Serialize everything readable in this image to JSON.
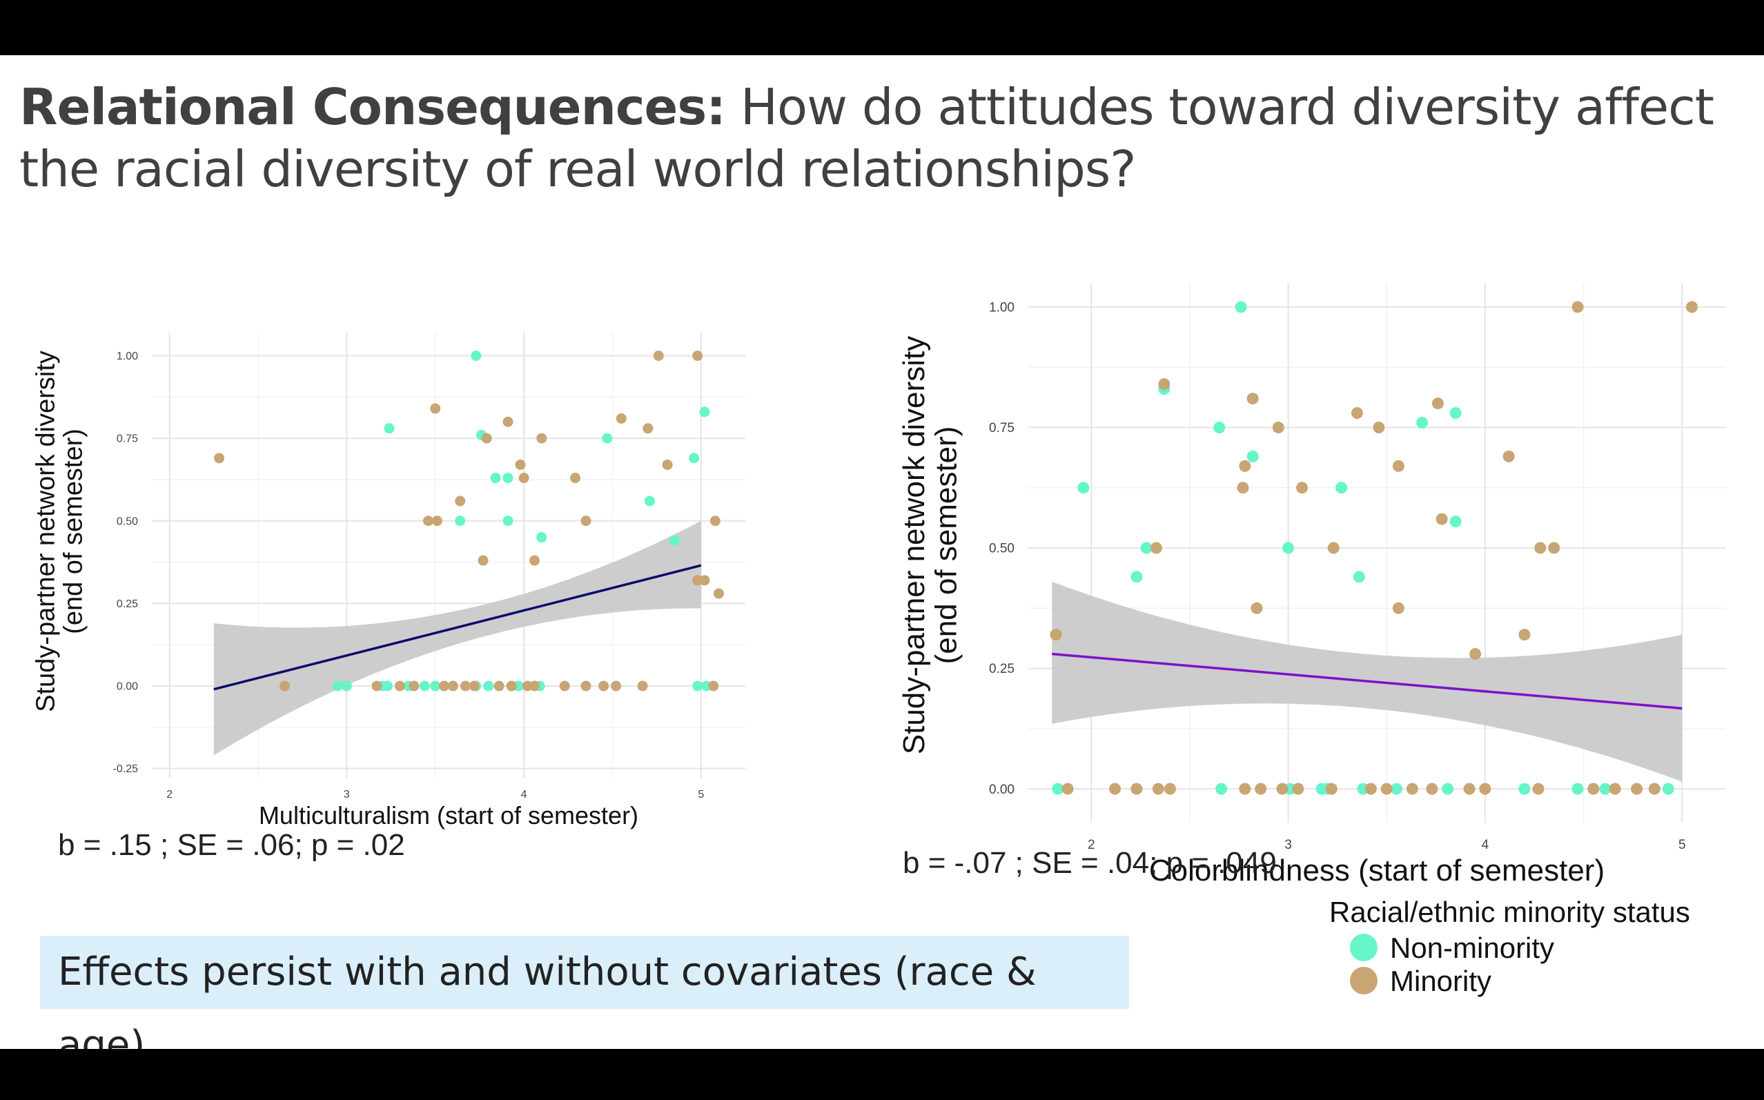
{
  "slide": {
    "title_bold": "Relational Consequences:",
    "title_rest": " How do attitudes toward diversity affect the racial diversity of real world relationships?",
    "stat_left": "b = .15 ; SE = .06; p = .02",
    "stat_right": "b = -.07 ; SE = .04; p = .049",
    "note": "Effects persist with and without covariates (race & age)"
  },
  "legend": {
    "title": "Racial/ethnic minority status",
    "items": [
      {
        "label": "Non-minority",
        "color": "#66f5c8"
      },
      {
        "label": "Minority",
        "color": "#c8a572"
      }
    ]
  },
  "colors": {
    "background": "#000000",
    "note_bg": "#dbeffb",
    "ribbon": "#c8c8c8"
  },
  "chart_data": [
    {
      "type": "scatter",
      "xlabel": "Multiculturalism (start of semester)",
      "ylabel": "Study-partner network diversity\n(end of semester)",
      "xlim": [
        1.9,
        5.25
      ],
      "ylim": [
        -0.28,
        1.07
      ],
      "xticks": [
        2,
        3,
        4,
        5
      ],
      "yticks": [
        -0.25,
        0,
        0.25,
        0.5,
        0.75,
        1.0
      ],
      "ytick_labels": [
        "-0.25",
        "0.00",
        "0.25",
        "0.50",
        "0.75",
        "1.00"
      ],
      "grid": true,
      "fit": {
        "x": [
          2.25,
          5.0
        ],
        "y": [
          -0.01,
          0.365
        ],
        "color": "#0a0a6e",
        "ci_lower": [
          -0.21,
          0.235
        ],
        "ci_upper": [
          0.19,
          0.5
        ]
      },
      "series": [
        {
          "name": "Non-minority",
          "color": "#66f5c8",
          "x": [
            3.73,
            3.24,
            3.76,
            5.02,
            4.96,
            4.47,
            3.84,
            3.91,
            3.64,
            3.91,
            4.71,
            4.1,
            4.85,
            2.95,
            3.0,
            3.2,
            3.23,
            3.35,
            3.44,
            3.5,
            3.73,
            3.8,
            3.97,
            4.09,
            4.98,
            5.03
          ],
          "y": [
            1.0,
            0.78,
            0.76,
            0.83,
            0.69,
            0.75,
            0.63,
            0.63,
            0.5,
            0.5,
            0.56,
            0.45,
            0.44,
            0,
            0,
            0,
            0,
            0,
            0,
            0,
            0,
            0,
            0,
            0,
            0,
            0
          ]
        },
        {
          "name": "Minority",
          "color": "#c8a572",
          "x": [
            2.28,
            4.76,
            4.98,
            3.5,
            3.91,
            3.79,
            4.1,
            3.98,
            4.55,
            4.7,
            4.81,
            3.64,
            3.46,
            3.51,
            4.0,
            4.29,
            4.35,
            3.77,
            4.06,
            5.08,
            4.98,
            5.02,
            5.1,
            2.65,
            3.17,
            3.3,
            3.38,
            3.55,
            3.6,
            3.67,
            3.72,
            3.86,
            3.93,
            4.02,
            4.06,
            4.23,
            4.35,
            4.45,
            4.52,
            4.67,
            5.07
          ],
          "y": [
            0.69,
            1.0,
            1.0,
            0.84,
            0.8,
            0.75,
            0.75,
            0.67,
            0.81,
            0.78,
            0.67,
            0.56,
            0.5,
            0.5,
            0.63,
            0.63,
            0.5,
            0.38,
            0.38,
            0.5,
            0.32,
            0.32,
            0.28,
            0,
            0,
            0,
            0,
            0,
            0,
            0,
            0,
            0,
            0,
            0,
            0,
            0,
            0,
            0,
            0,
            0,
            0
          ]
        }
      ]
    },
    {
      "type": "scatter",
      "xlabel": "Colorblindness (start of semester)",
      "ylabel": "Study-partner network diversity\n(end of semester)",
      "xlim": [
        1.68,
        5.22
      ],
      "ylim": [
        -0.07,
        1.05
      ],
      "xticks": [
        2,
        3,
        4,
        5
      ],
      "yticks": [
        0,
        0.25,
        0.5,
        0.75,
        1.0
      ],
      "ytick_labels": [
        "0.00",
        "0.25",
        "0.50",
        "0.75",
        "1.00"
      ],
      "grid": true,
      "fit": {
        "x": [
          1.8,
          5.0
        ],
        "y": [
          0.28,
          0.167
        ],
        "color": "#7d12c8",
        "ci_lower": [
          0.135,
          0.015
        ],
        "ci_upper": [
          0.43,
          0.32
        ]
      },
      "series": [
        {
          "name": "Non-minority",
          "color": "#66f5c8",
          "x": [
            2.76,
            2.37,
            2.65,
            2.82,
            1.96,
            2.28,
            3.27,
            3.0,
            2.23,
            3.36,
            3.68,
            3.85,
            3.85,
            1.83,
            2.66,
            3.01,
            3.17,
            3.2,
            3.38,
            3.55,
            3.81,
            4.2,
            4.47,
            4.61,
            4.86,
            4.93
          ],
          "y": [
            1.0,
            0.83,
            0.75,
            0.69,
            0.625,
            0.5,
            0.625,
            0.5,
            0.44,
            0.44,
            0.76,
            0.78,
            0.555,
            0,
            0,
            0,
            0,
            0,
            0,
            0,
            0,
            0,
            0,
            0,
            0,
            0
          ]
        },
        {
          "name": "Minority",
          "color": "#c8a572",
          "x": [
            1.82,
            2.37,
            2.82,
            2.78,
            2.77,
            2.95,
            3.07,
            3.35,
            3.46,
            3.56,
            3.76,
            3.78,
            3.23,
            2.33,
            2.84,
            3.56,
            3.95,
            4.12,
            4.2,
            4.28,
            4.35,
            4.47,
            5.05,
            1.88,
            2.12,
            2.23,
            2.34,
            2.4,
            2.78,
            2.86,
            2.97,
            3.05,
            3.22,
            3.42,
            3.5,
            3.63,
            3.73,
            3.92,
            4.0,
            4.27,
            4.55,
            4.66,
            4.77,
            4.86
          ],
          "y": [
            0.32,
            0.84,
            0.81,
            0.67,
            0.625,
            0.75,
            0.625,
            0.78,
            0.75,
            0.67,
            0.8,
            0.56,
            0.5,
            0.5,
            0.375,
            0.375,
            0.28,
            0.69,
            0.32,
            0.5,
            0.5,
            1.0,
            1.0,
            0,
            0,
            0,
            0,
            0,
            0,
            0,
            0,
            0,
            0,
            0,
            0,
            0,
            0,
            0,
            0,
            0,
            0,
            0,
            0,
            0
          ]
        }
      ]
    }
  ]
}
